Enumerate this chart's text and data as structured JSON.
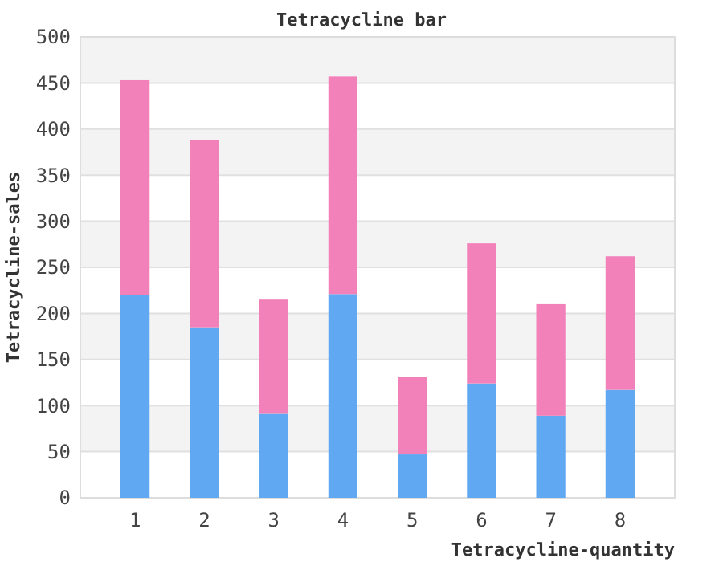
{
  "chart_data": {
    "type": "bar",
    "title": "Tetracycline bar",
    "xlabel": "Tetracycline-quantity",
    "ylabel": "Tetracycline-sales",
    "categories": [
      "1",
      "2",
      "3",
      "4",
      "5",
      "6",
      "7",
      "8"
    ],
    "series": [
      {
        "color": "#60a8f2",
        "values": [
          220,
          185,
          91,
          221,
          47,
          124,
          89,
          117
        ]
      },
      {
        "color": "#f281b9",
        "values": [
          233,
          203,
          124,
          236,
          84,
          152,
          121,
          145
        ]
      }
    ],
    "stacked": true,
    "ylim": [
      0,
      500
    ],
    "yticks": [
      0,
      50,
      100,
      150,
      200,
      250,
      300,
      350,
      400,
      450,
      500
    ],
    "grid": "y"
  }
}
